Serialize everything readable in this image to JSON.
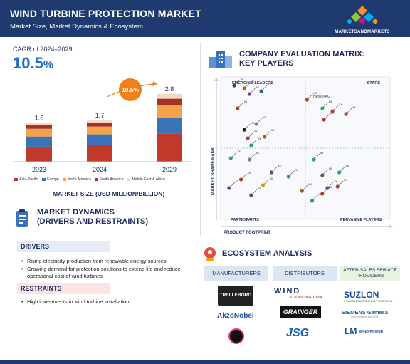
{
  "header": {
    "title": "WIND TURBINE PROTECTION MARKET",
    "subtitle": "Market Size, Market Dynamics & Ecosystem",
    "brand": "MARKETSANDMARKETS"
  },
  "colors": {
    "header_bg": "#1e3a6e",
    "cagr_blue": "#1f6fc9",
    "badge_orange": "#f07f1c"
  },
  "cagr": {
    "label": "CAGR of 2024–2029",
    "value": "10.5",
    "unit": "%"
  },
  "chart_data": {
    "type": "bar",
    "stacked": true,
    "categories": [
      "2023",
      "2024",
      "2029"
    ],
    "totals": [
      1.6,
      1.7,
      2.8
    ],
    "total_labels": [
      "1.6",
      "1.7",
      "2.8"
    ],
    "series": [
      {
        "name": "Asia-Pacific",
        "color": "#c0392b",
        "values": [
          0.62,
          0.7,
          1.17
        ]
      },
      {
        "name": "Europe",
        "color": "#3a73b8",
        "values": [
          0.42,
          0.43,
          0.63
        ]
      },
      {
        "name": "North America",
        "color": "#f5a34b",
        "values": [
          0.32,
          0.32,
          0.52
        ]
      },
      {
        "name": "South America",
        "color": "#a93226",
        "values": [
          0.14,
          0.15,
          0.28
        ]
      },
      {
        "name": "Middle East & Africa",
        "color": "#f3d9c4",
        "values": [
          0.1,
          0.1,
          0.2
        ]
      }
    ],
    "growth_badge": "10.5%",
    "xlabel": "MARKET SIZE (USD MILLION/BILLION)",
    "ylim": [
      0,
      3.0
    ],
    "grid": false,
    "legend_position": "bottom"
  },
  "dynamics": {
    "title_line1": "MARKET DYNAMICS",
    "title_line2": "(DRIVERS AND RESTRAINTS)",
    "drivers_label": "DRIVERS",
    "drivers": [
      "Rising electricity production from renewable energy sources",
      "Growing demand for protection solutions to extend life and reduce operational cost of wind turbines"
    ],
    "restraints_label": "RESTRAINTS",
    "restraints": [
      "High investments in wind turbine installation"
    ]
  },
  "matrix": {
    "title_line1": "COMPANY EVALUATION MATRIX:",
    "title_line2": "KEY PLAYERS",
    "quadrants": {
      "top_left": "EMERGING LEADERS",
      "top_right": "STARS",
      "bottom_left": "PARTICIPANTS",
      "bottom_right": "PERVASIVE PLAYERS"
    },
    "y_axis": "MARKET SHARE/RANK",
    "x_axis": "PRODUCT FOOTPRINT",
    "company_label": "xx",
    "named_company": "Henkel AG",
    "points": [
      {
        "x": 0.08,
        "y": 0.94,
        "c": "#444"
      },
      {
        "x": 0.14,
        "y": 0.92,
        "c": "#d35400"
      },
      {
        "x": 0.17,
        "y": 0.88,
        "c": "#7d3c98"
      },
      {
        "x": 0.24,
        "y": 0.9,
        "c": "#1f618d"
      },
      {
        "x": 0.1,
        "y": 0.78,
        "c": "#c0392b"
      },
      {
        "x": 0.21,
        "y": 0.67,
        "c": "#888"
      },
      {
        "x": 0.14,
        "y": 0.63,
        "c": "#111"
      },
      {
        "x": 0.16,
        "y": 0.57,
        "c": "#c0392b"
      },
      {
        "x": 0.18,
        "y": 0.52,
        "c": "#27ae60"
      },
      {
        "x": 0.26,
        "y": 0.58,
        "c": "#d35400"
      },
      {
        "x": 0.51,
        "y": 0.84,
        "c": "#c0392b"
      },
      {
        "x": 0.6,
        "y": 0.78,
        "c": "#27ae60"
      },
      {
        "x": 0.61,
        "y": 0.7,
        "c": "#c0392b"
      },
      {
        "x": 0.66,
        "y": 0.76,
        "c": "#c0392b"
      },
      {
        "x": 0.74,
        "y": 0.74,
        "c": "#c0392b"
      },
      {
        "x": 0.06,
        "y": 0.43,
        "c": "#27ae60"
      },
      {
        "x": 0.17,
        "y": 0.42,
        "c": "#888"
      },
      {
        "x": 0.3,
        "y": 0.33,
        "c": "#555"
      },
      {
        "x": 0.12,
        "y": 0.28,
        "c": "#c0392b"
      },
      {
        "x": 0.25,
        "y": 0.24,
        "c": "#d4a017"
      },
      {
        "x": 0.18,
        "y": 0.17,
        "c": "#555"
      },
      {
        "x": 0.05,
        "y": 0.22,
        "c": "#7d3c98"
      },
      {
        "x": 0.4,
        "y": 0.3,
        "c": "#27ae60"
      },
      {
        "x": 0.55,
        "y": 0.42,
        "c": "#27ae60"
      },
      {
        "x": 0.6,
        "y": 0.31,
        "c": "#555"
      },
      {
        "x": 0.63,
        "y": 0.22,
        "c": "#7d3c98"
      },
      {
        "x": 0.6,
        "y": 0.18,
        "c": "#c0392b"
      },
      {
        "x": 0.54,
        "y": 0.13,
        "c": "#27ae60"
      },
      {
        "x": 0.69,
        "y": 0.23,
        "c": "#c0392b"
      },
      {
        "x": 0.7,
        "y": 0.33,
        "c": "#27ae60"
      },
      {
        "x": 0.48,
        "y": 0.2,
        "c": "#d35400"
      }
    ]
  },
  "ecosystem": {
    "title": "ECOSYSTEM ANALYSIS",
    "columns": [
      "MANUFACTURERS",
      "DISTRIBUTORS",
      "AFTER-SALES SERVICE PROVIDERS"
    ],
    "manufacturers": [
      "TRELLEBORG",
      "AkzoNobel"
    ],
    "distributors": [
      "WIND",
      "SOURCING.COM",
      "GRAINGER",
      "JSG"
    ],
    "service_providers": [
      "SUZLON",
      "POWERING A GREENER TOMORROW",
      "SIEMENS Gamesa",
      "RENEWABLE ENERGY",
      "LM",
      "WIND POWER"
    ]
  }
}
